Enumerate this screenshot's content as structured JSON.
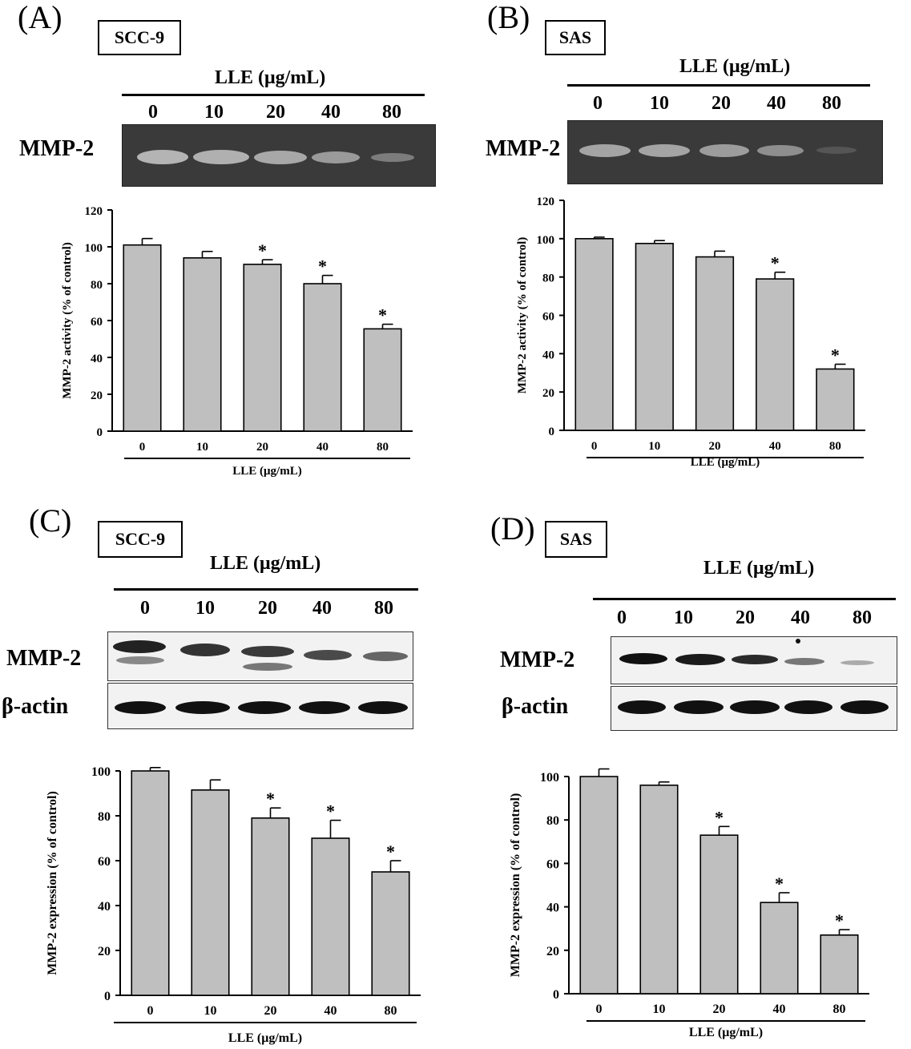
{
  "panels": [
    {
      "letter": "(A)",
      "cell_line": "SCC-9",
      "blot_header": "LLE (μg/mL)",
      "lanes": [
        "0",
        "10",
        "20",
        "40",
        "80"
      ],
      "blot_rows": [
        "MMP-2"
      ]
    },
    {
      "letter": "(B)",
      "cell_line": "SAS",
      "blot_header": "LLE (μg/mL)",
      "lanes": [
        "0",
        "10",
        "20",
        "40",
        "80"
      ],
      "blot_rows": [
        "MMP-2"
      ]
    },
    {
      "letter": "(C)",
      "cell_line": "SCC-9",
      "blot_header": "LLE (μg/mL)",
      "lanes": [
        "0",
        "10",
        "20",
        "40",
        "80"
      ],
      "blot_rows": [
        "MMP-2",
        "β-actin"
      ]
    },
    {
      "letter": "(D)",
      "cell_line": "SAS",
      "blot_header": "LLE (μg/mL)",
      "lanes": [
        "0",
        "10",
        "20",
        "40",
        "80"
      ],
      "blot_rows": [
        "MMP-2",
        "β-actin"
      ]
    }
  ],
  "chart_data": [
    {
      "type": "bar",
      "categories": [
        "0",
        "10",
        "20",
        "40",
        "80"
      ],
      "values": [
        101,
        94,
        90.5,
        80,
        55.5
      ],
      "errors": [
        3.5,
        3.5,
        2.5,
        4.5,
        2.5
      ],
      "significant": [
        false,
        false,
        true,
        true,
        true
      ],
      "annotation": "*",
      "xlabel": "LLE (μg/mL)",
      "ylabel": "MMP-2 activity (% of control)",
      "ylim": [
        0,
        120
      ],
      "yticks": [
        0,
        20,
        40,
        60,
        80,
        100,
        120
      ],
      "bar_color": "#bfbfbf"
    },
    {
      "type": "bar",
      "categories": [
        "0",
        "10",
        "20",
        "40",
        "80"
      ],
      "values": [
        100,
        97.5,
        90.5,
        79,
        32
      ],
      "errors": [
        0.8,
        1.5,
        3,
        3.5,
        2.5
      ],
      "significant": [
        false,
        false,
        false,
        true,
        true
      ],
      "annotation": "*",
      "xlabel": "LLE (μg/mL)",
      "ylabel": "MMP-2 activity (% of control)",
      "ylim": [
        0,
        120
      ],
      "yticks": [
        0,
        20,
        40,
        60,
        80,
        100,
        120
      ],
      "bar_color": "#bfbfbf"
    },
    {
      "type": "bar",
      "categories": [
        "0",
        "10",
        "20",
        "40",
        "80"
      ],
      "values": [
        100,
        91.5,
        79,
        70,
        55
      ],
      "errors": [
        1.5,
        4.5,
        4.5,
        8,
        5
      ],
      "significant": [
        false,
        false,
        true,
        true,
        true
      ],
      "annotation": "*",
      "xlabel": "LLE (μg/mL)",
      "ylabel": "MMP-2 expression (% of control)",
      "ylim": [
        0,
        100
      ],
      "yticks": [
        0,
        20,
        40,
        60,
        80,
        100
      ],
      "bar_color": "#bfbfbf"
    },
    {
      "type": "bar",
      "categories": [
        "0",
        "10",
        "20",
        "40",
        "80"
      ],
      "values": [
        100,
        96,
        73,
        42,
        27
      ],
      "errors": [
        3.5,
        1.5,
        4,
        4.5,
        2.5
      ],
      "significant": [
        false,
        false,
        true,
        true,
        true
      ],
      "annotation": "*",
      "xlabel": "LLE (μg/mL)",
      "ylabel": "MMP-2 expression (% of control)",
      "ylim": [
        0,
        100
      ],
      "yticks": [
        0,
        20,
        40,
        60,
        80,
        100
      ],
      "bar_color": "#bfbfbf"
    }
  ]
}
